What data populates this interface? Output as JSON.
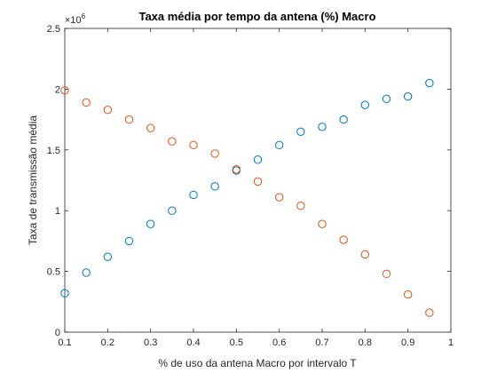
{
  "chart_data": {
    "type": "scatter",
    "title": "Taxa média por tempo da antena (%) Macro",
    "xlabel": "% de uso da antena Macro por intervalo T",
    "ylabel": "Taxa de transmissão média",
    "xlim": [
      0.1,
      1
    ],
    "ylim": [
      0,
      2500000
    ],
    "x_ticks": [
      0.1,
      0.2,
      0.3,
      0.4,
      0.5,
      0.6,
      0.7,
      0.8,
      0.9,
      1
    ],
    "x_tick_labels": [
      "0.1",
      "0.2",
      "0.3",
      "0.4",
      "0.5",
      "0.6",
      "0.7",
      "0.8",
      "0.9",
      "1"
    ],
    "y_ticks": [
      0,
      500000,
      1000000,
      1500000,
      2000000,
      2500000
    ],
    "y_tick_labels": [
      "0",
      "0.5",
      "1",
      "1.5",
      "2",
      "2.5"
    ],
    "y_exponent_base": "×10",
    "y_exponent_power": "6",
    "grid": false,
    "marker": "circle-open",
    "x": [
      0.1,
      0.15,
      0.2,
      0.25,
      0.3,
      0.35,
      0.4,
      0.45,
      0.5,
      0.55,
      0.6,
      0.65,
      0.7,
      0.75,
      0.8,
      0.85,
      0.9,
      0.95
    ],
    "series": [
      {
        "color": "#0072BD",
        "values": [
          320000,
          490000,
          620000,
          750000,
          890000,
          1000000,
          1130000,
          1200000,
          1330000,
          1420000,
          1540000,
          1650000,
          1690000,
          1750000,
          1870000,
          1920000,
          1940000,
          2050000
        ]
      },
      {
        "color": "#D95319",
        "values": [
          1990000,
          1890000,
          1830000,
          1750000,
          1680000,
          1570000,
          1540000,
          1470000,
          1340000,
          1240000,
          1110000,
          1040000,
          890000,
          760000,
          640000,
          480000,
          310000,
          160000
        ]
      }
    ]
  }
}
